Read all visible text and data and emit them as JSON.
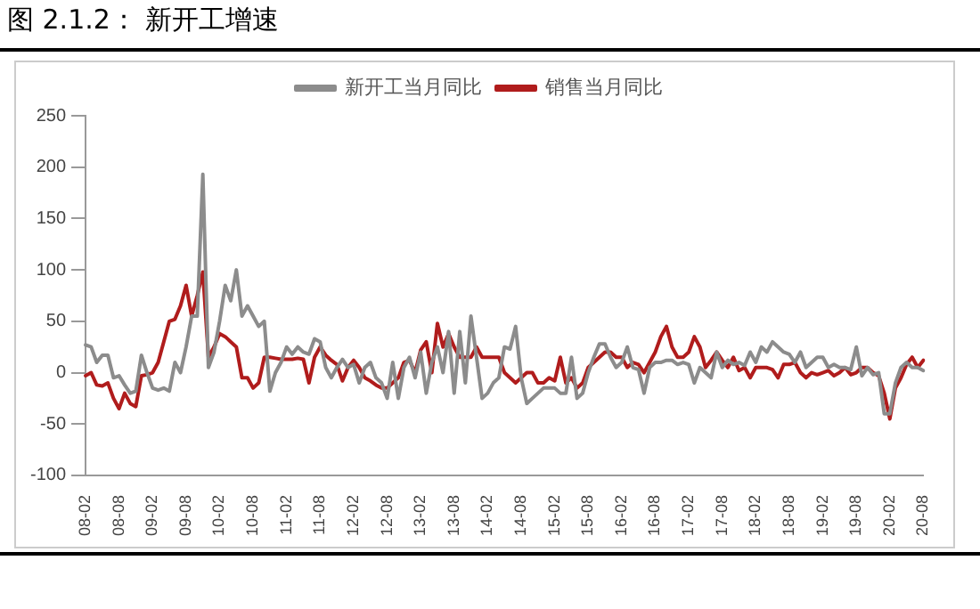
{
  "chart_data": {
    "type": "line",
    "title": "图 2.1.2： 新开工增速",
    "categories": [
      "08-02",
      null,
      null,
      null,
      null,
      null,
      "08-08",
      null,
      null,
      null,
      null,
      null,
      "09-02",
      null,
      null,
      null,
      null,
      null,
      "09-08",
      null,
      null,
      null,
      null,
      null,
      "10-02",
      null,
      null,
      null,
      null,
      null,
      "10-08",
      null,
      null,
      null,
      null,
      null,
      "11-02",
      null,
      null,
      null,
      null,
      null,
      "11-08",
      null,
      null,
      null,
      null,
      null,
      "12-02",
      null,
      null,
      null,
      null,
      null,
      "12-08",
      null,
      null,
      null,
      null,
      null,
      "13-02",
      null,
      null,
      null,
      null,
      null,
      "13-08",
      null,
      null,
      null,
      null,
      null,
      "14-02",
      null,
      null,
      null,
      null,
      null,
      "14-08",
      null,
      null,
      null,
      null,
      null,
      "15-02",
      null,
      null,
      null,
      null,
      null,
      "15-08",
      null,
      null,
      null,
      null,
      null,
      "16-02",
      null,
      null,
      null,
      null,
      null,
      "16-08",
      null,
      null,
      null,
      null,
      null,
      "17-02",
      null,
      null,
      null,
      null,
      null,
      "17-08",
      null,
      null,
      null,
      null,
      null,
      "18-02",
      null,
      null,
      null,
      null,
      null,
      "18-08",
      null,
      null,
      null,
      null,
      null,
      "19-02",
      null,
      null,
      null,
      null,
      null,
      "19-08",
      null,
      null,
      null,
      null,
      null,
      "20-02",
      null,
      null,
      null,
      null,
      null,
      "20-08"
    ],
    "series": [
      {
        "name": "新开工当月同比",
        "color": "#8c8c8c",
        "values": [
          27,
          25,
          10,
          17,
          17,
          -5,
          -3,
          -12,
          -20,
          -18,
          17,
          0,
          -15,
          -17,
          -15,
          -18,
          10,
          0,
          25,
          55,
          55,
          193,
          5,
          20,
          50,
          85,
          70,
          100,
          55,
          65,
          55,
          45,
          50,
          -18,
          0,
          10,
          25,
          18,
          25,
          20,
          18,
          33,
          30,
          5,
          -5,
          5,
          13,
          5,
          8,
          -10,
          5,
          10,
          -5,
          -10,
          -25,
          10,
          -25,
          5,
          15,
          -5,
          20,
          -20,
          10,
          25,
          0,
          40,
          -20,
          40,
          -10,
          55,
          15,
          -25,
          -20,
          -10,
          -5,
          25,
          23,
          45,
          -5,
          -30,
          -25,
          -20,
          -15,
          -15,
          -15,
          -20,
          -20,
          15,
          -25,
          -20,
          0,
          15,
          28,
          28,
          15,
          5,
          10,
          25,
          5,
          3,
          -20,
          5,
          10,
          10,
          12,
          12,
          8,
          10,
          8,
          -10,
          5,
          0,
          -5,
          20,
          5,
          12,
          8,
          10,
          7,
          20,
          10,
          25,
          20,
          30,
          25,
          20,
          18,
          10,
          20,
          5,
          10,
          15,
          15,
          5,
          8,
          5,
          5,
          3,
          25,
          -3,
          5,
          -2,
          0,
          -40,
          -40,
          -10,
          5,
          10,
          5,
          5,
          2
        ]
      },
      {
        "name": "销售当月同比",
        "color": "#b01c1c",
        "values": [
          -3,
          0,
          -12,
          -13,
          -10,
          -25,
          -35,
          -20,
          -30,
          -33,
          -3,
          -2,
          0,
          10,
          30,
          50,
          52,
          65,
          85,
          55,
          75,
          98,
          15,
          25,
          38,
          35,
          30,
          25,
          -5,
          -5,
          -15,
          -10,
          15,
          15,
          14,
          13,
          13,
          13,
          14,
          13,
          -10,
          15,
          25,
          17,
          12,
          8,
          -8,
          5,
          12,
          5,
          -5,
          -8,
          -12,
          -15,
          -15,
          -10,
          -5,
          10,
          12,
          0,
          22,
          30,
          0,
          48,
          25,
          38,
          25,
          15,
          15,
          15,
          25,
          15,
          15,
          15,
          15,
          0,
          -5,
          -10,
          -5,
          0,
          0,
          -10,
          -10,
          -5,
          -8,
          15,
          -10,
          -5,
          -15,
          -10,
          5,
          10,
          15,
          20,
          20,
          15,
          15,
          5,
          10,
          8,
          0,
          10,
          20,
          35,
          45,
          25,
          15,
          15,
          20,
          35,
          25,
          5,
          12,
          20,
          12,
          5,
          15,
          2,
          5,
          -5,
          5,
          5,
          5,
          3,
          -5,
          8,
          8,
          10,
          0,
          -5,
          0,
          -2,
          0,
          2,
          -3,
          0,
          5,
          -2,
          0,
          5,
          5,
          0,
          -3,
          -20,
          -45,
          -15,
          -5,
          8,
          15,
          5,
          12
        ]
      }
    ],
    "ylim": [
      -100,
      250
    ],
    "yticks": [
      -100,
      -50,
      0,
      50,
      100,
      150,
      200,
      250
    ],
    "legend": "top",
    "grid": false,
    "marker": "none",
    "line_style": "solid"
  }
}
